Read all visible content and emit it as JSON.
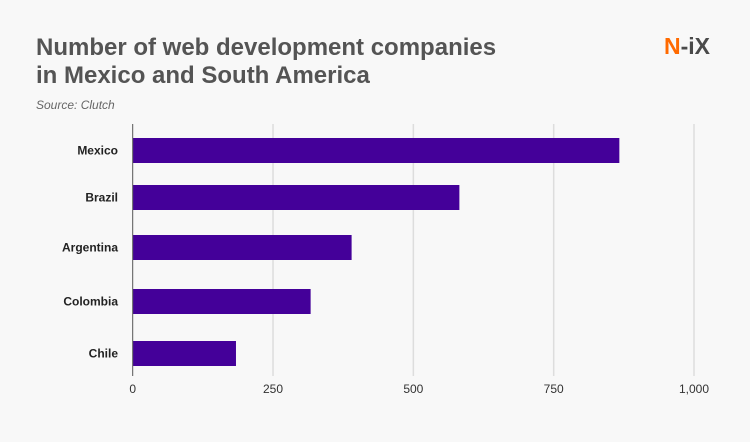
{
  "header": {
    "title_line1": "Number of web development companies",
    "title_line2": "in Mexico and South America",
    "source": "Source: Clutch",
    "logo": "N-iX"
  },
  "colors": {
    "bar": "#440099",
    "logo_accent": "#ff6a00",
    "logo_text": "#4a4a4a"
  },
  "chart_data": {
    "type": "bar",
    "orientation": "horizontal",
    "title": "Number of web development companies in Mexico and South America",
    "categories": [
      "Mexico",
      "Brazil",
      "Argentina",
      "Colombia",
      "Chile"
    ],
    "values": [
      867,
      582,
      390,
      317,
      184
    ],
    "xlim": [
      0,
      1000
    ],
    "xticks": [
      "0",
      "250",
      "500",
      "750",
      "1,000"
    ],
    "grid": "vertical",
    "legend": "none"
  }
}
